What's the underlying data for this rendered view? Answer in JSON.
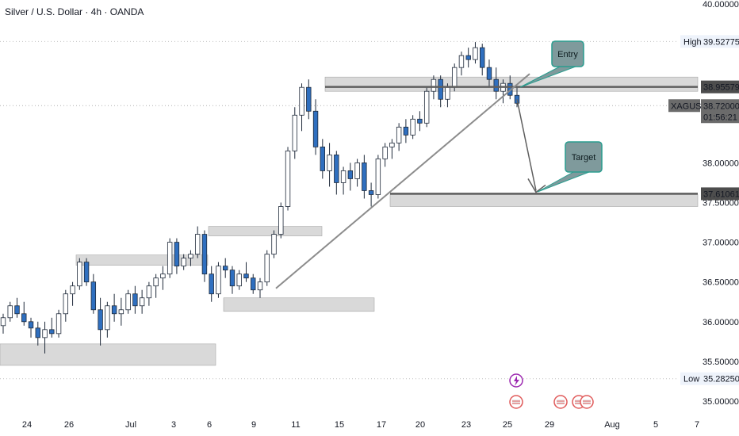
{
  "title": "Silver / U.S. Dollar · 4h · OANDA",
  "colors": {
    "up": "#ffffff",
    "down": "#2f6fbf",
    "wick": "#1f2a3a",
    "zone": "#d9d9d9",
    "zoneStroke": "#a8a8a8",
    "trend": "#8c8c8c",
    "level": "#5f5f5f",
    "callout": "#7f9a9c",
    "calloutStroke": "#2a9d8f",
    "event": "#e05b5b",
    "lightning": "#9c27b0"
  },
  "chart_data": {
    "type": "candlestick",
    "instrument": "Silver / U.S. Dollar",
    "timeframe": "4h",
    "source": "OANDA",
    "y_ticks": [
      "40.00000",
      "38.00000",
      "37.50000",
      "37.00000",
      "36.50000",
      "36.00000",
      "35.50000",
      "35.00000"
    ],
    "x_ticks": [
      "24",
      "26",
      "Jul",
      "3",
      "6",
      "9",
      "11",
      "15",
      "17",
      "20",
      "23",
      "25",
      "29",
      "Aug",
      "5",
      "7"
    ],
    "ylim": [
      35.0,
      40.0
    ],
    "high": {
      "label": "High",
      "value": "39.52775"
    },
    "low": {
      "label": "Low",
      "value": "35.28250"
    },
    "current": {
      "symbol": "XAGUSD",
      "price": "38.72000",
      "countdown": "01:56:21"
    },
    "levels": [
      {
        "name": "Entry level",
        "price": 38.95579,
        "label": "38.95579"
      },
      {
        "name": "Target level",
        "price": 37.61061,
        "label": "37.61061"
      }
    ],
    "annotations": [
      "Entry",
      "Target"
    ],
    "zones": [
      {
        "from": 35.45,
        "to": 35.72
      },
      {
        "from": 36.13,
        "to": 36.3
      },
      {
        "from": 36.71,
        "to": 36.84
      },
      {
        "from": 37.08,
        "to": 37.2
      },
      {
        "from": 37.45,
        "to": 37.6
      },
      {
        "from": 38.9,
        "to": 39.08
      }
    ],
    "candles": [
      [
        35.95,
        36.1,
        35.85,
        36.05
      ],
      [
        36.05,
        36.25,
        36.0,
        36.2
      ],
      [
        36.2,
        36.3,
        36.05,
        36.1
      ],
      [
        36.1,
        36.25,
        35.95,
        36.0
      ],
      [
        36.0,
        36.05,
        35.8,
        35.92
      ],
      [
        35.92,
        36.0,
        35.7,
        35.8
      ],
      [
        35.8,
        36.0,
        35.6,
        35.9
      ],
      [
        35.9,
        36.05,
        35.8,
        35.85
      ],
      [
        35.85,
        36.15,
        35.8,
        36.1
      ],
      [
        36.1,
        36.4,
        36.0,
        36.35
      ],
      [
        36.35,
        36.5,
        36.2,
        36.45
      ],
      [
        36.45,
        36.8,
        36.4,
        36.75
      ],
      [
        36.75,
        36.8,
        36.45,
        36.5
      ],
      [
        36.5,
        36.6,
        36.1,
        36.15
      ],
      [
        36.15,
        36.3,
        35.7,
        35.9
      ],
      [
        35.9,
        36.25,
        35.8,
        36.2
      ],
      [
        36.2,
        36.35,
        36.0,
        36.1
      ],
      [
        36.1,
        36.3,
        35.95,
        36.15
      ],
      [
        36.15,
        36.4,
        36.1,
        36.35
      ],
      [
        36.35,
        36.45,
        36.1,
        36.2
      ],
      [
        36.2,
        36.4,
        36.1,
        36.3
      ],
      [
        36.3,
        36.5,
        36.2,
        36.45
      ],
      [
        36.45,
        36.6,
        36.3,
        36.55
      ],
      [
        36.55,
        36.7,
        36.4,
        36.6
      ],
      [
        36.6,
        37.05,
        36.55,
        37.0
      ],
      [
        37.0,
        37.05,
        36.6,
        36.7
      ],
      [
        36.7,
        36.85,
        36.65,
        36.8
      ],
      [
        36.8,
        36.9,
        36.7,
        36.85
      ],
      [
        36.85,
        37.2,
        36.8,
        37.1
      ],
      [
        37.1,
        37.15,
        36.5,
        36.6
      ],
      [
        36.6,
        36.7,
        36.25,
        36.35
      ],
      [
        36.35,
        36.75,
        36.3,
        36.7
      ],
      [
        36.7,
        36.8,
        36.55,
        36.65
      ],
      [
        36.65,
        36.7,
        36.35,
        36.45
      ],
      [
        36.45,
        36.65,
        36.4,
        36.6
      ],
      [
        36.6,
        36.75,
        36.5,
        36.55
      ],
      [
        36.55,
        36.6,
        36.35,
        36.4
      ],
      [
        36.4,
        36.55,
        36.3,
        36.5
      ],
      [
        36.5,
        36.9,
        36.45,
        36.85
      ],
      [
        36.85,
        37.15,
        36.8,
        37.1
      ],
      [
        37.1,
        37.5,
        37.05,
        37.45
      ],
      [
        37.45,
        38.2,
        37.4,
        38.15
      ],
      [
        38.15,
        38.7,
        38.05,
        38.6
      ],
      [
        38.6,
        39.0,
        38.4,
        38.95
      ],
      [
        38.95,
        39.05,
        38.55,
        38.65
      ],
      [
        38.65,
        38.8,
        38.1,
        38.2
      ],
      [
        38.2,
        38.3,
        37.8,
        37.9
      ],
      [
        37.9,
        38.25,
        37.7,
        38.1
      ],
      [
        38.1,
        38.15,
        37.6,
        37.75
      ],
      [
        37.75,
        37.95,
        37.6,
        37.9
      ],
      [
        37.9,
        38.0,
        37.65,
        37.8
      ],
      [
        37.8,
        38.05,
        37.7,
        38.0
      ],
      [
        38.0,
        38.1,
        37.55,
        37.65
      ],
      [
        37.65,
        37.75,
        37.45,
        37.6
      ],
      [
        37.6,
        38.1,
        37.55,
        38.05
      ],
      [
        38.05,
        38.25,
        37.95,
        38.2
      ],
      [
        38.2,
        38.3,
        38.05,
        38.25
      ],
      [
        38.25,
        38.5,
        38.15,
        38.45
      ],
      [
        38.45,
        38.55,
        38.25,
        38.35
      ],
      [
        38.35,
        38.6,
        38.3,
        38.55
      ],
      [
        38.55,
        38.65,
        38.4,
        38.5
      ],
      [
        38.5,
        38.95,
        38.45,
        38.9
      ],
      [
        38.9,
        39.1,
        38.8,
        39.05
      ],
      [
        39.05,
        39.1,
        38.7,
        38.8
      ],
      [
        38.8,
        39.0,
        38.7,
        38.95
      ],
      [
        38.95,
        39.25,
        38.9,
        39.2
      ],
      [
        39.2,
        39.4,
        39.1,
        39.35
      ],
      [
        39.35,
        39.45,
        39.2,
        39.3
      ],
      [
        39.3,
        39.52,
        39.25,
        39.45
      ],
      [
        39.45,
        39.5,
        39.1,
        39.2
      ],
      [
        39.2,
        39.3,
        38.95,
        39.05
      ],
      [
        39.05,
        39.2,
        38.8,
        38.9
      ],
      [
        38.9,
        39.05,
        38.75,
        39.0
      ],
      [
        39.0,
        39.1,
        38.8,
        38.85
      ],
      [
        38.85,
        38.95,
        38.7,
        38.75
      ]
    ]
  },
  "chart_header": "Silver / U.S. Dollar · 4h · OANDA"
}
